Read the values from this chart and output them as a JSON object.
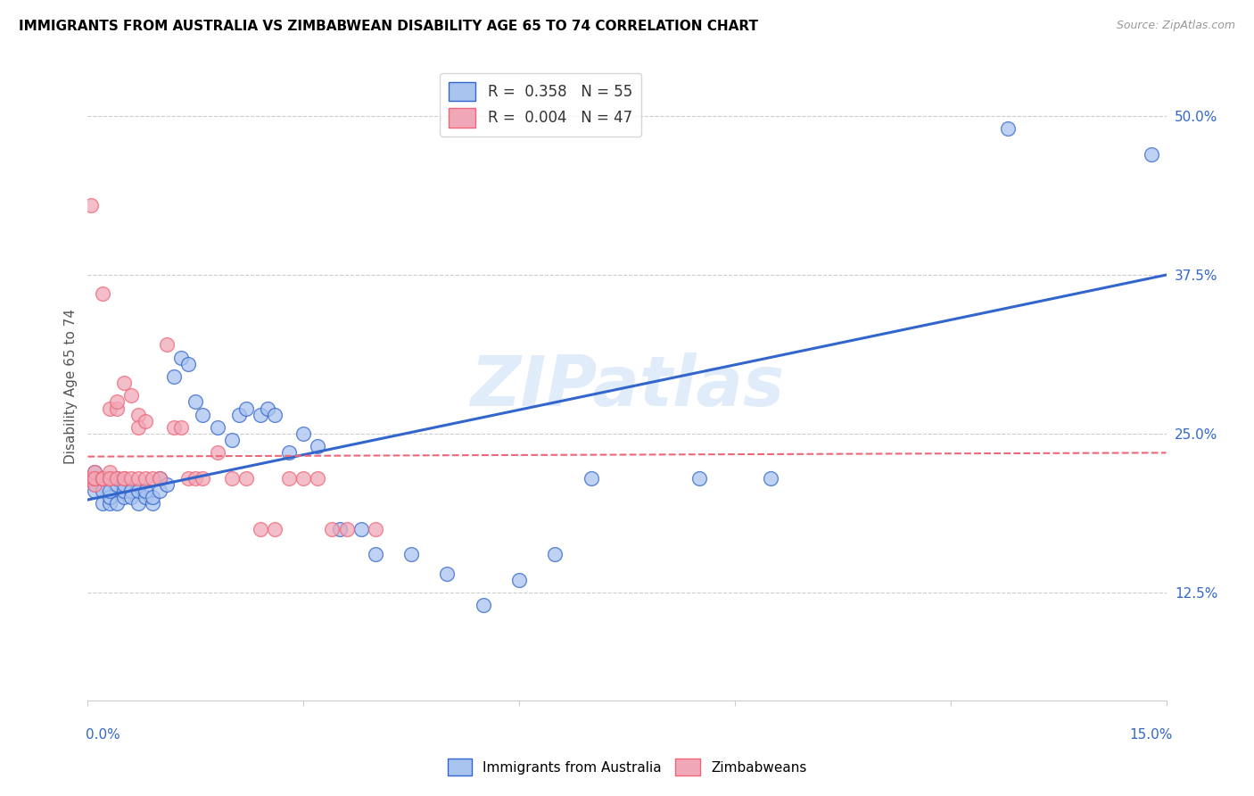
{
  "title": "IMMIGRANTS FROM AUSTRALIA VS ZIMBABWEAN DISABILITY AGE 65 TO 74 CORRELATION CHART",
  "source": "Source: ZipAtlas.com",
  "ylabel": "Disability Age 65 to 74",
  "ytick_labels": [
    "12.5%",
    "25.0%",
    "37.5%",
    "50.0%"
  ],
  "ytick_values": [
    0.125,
    0.25,
    0.375,
    0.5
  ],
  "xmin": 0.0,
  "xmax": 0.15,
  "ymin": 0.04,
  "ymax": 0.535,
  "legend_val1": "0.358",
  "legend_nval1": "55",
  "legend_val2": "0.004",
  "legend_nval2": "47",
  "watermark": "ZIPatlas",
  "color_australia": "#aac4f0",
  "color_zimbabwe": "#f0a8b8",
  "color_line_australia": "#3366cc",
  "color_line_zimbabwe": "#ee6677",
  "australia_x": [
    0.001,
    0.001,
    0.001,
    0.001,
    0.002,
    0.002,
    0.002,
    0.003,
    0.003,
    0.003,
    0.004,
    0.004,
    0.004,
    0.005,
    0.005,
    0.005,
    0.006,
    0.006,
    0.007,
    0.007,
    0.008,
    0.008,
    0.009,
    0.009,
    0.01,
    0.01,
    0.011,
    0.012,
    0.013,
    0.014,
    0.015,
    0.016,
    0.018,
    0.02,
    0.021,
    0.022,
    0.024,
    0.025,
    0.026,
    0.028,
    0.03,
    0.032,
    0.035,
    0.038,
    0.04,
    0.045,
    0.05,
    0.055,
    0.06,
    0.065,
    0.07,
    0.085,
    0.095,
    0.128,
    0.148
  ],
  "australia_y": [
    0.21,
    0.215,
    0.22,
    0.205,
    0.205,
    0.215,
    0.195,
    0.195,
    0.2,
    0.205,
    0.195,
    0.21,
    0.215,
    0.2,
    0.205,
    0.21,
    0.205,
    0.2,
    0.195,
    0.205,
    0.2,
    0.205,
    0.195,
    0.2,
    0.215,
    0.205,
    0.21,
    0.295,
    0.31,
    0.305,
    0.275,
    0.265,
    0.255,
    0.245,
    0.265,
    0.27,
    0.265,
    0.27,
    0.265,
    0.235,
    0.25,
    0.24,
    0.175,
    0.175,
    0.155,
    0.155,
    0.14,
    0.115,
    0.135,
    0.155,
    0.215,
    0.215,
    0.215,
    0.49,
    0.47
  ],
  "zimbabwe_x": [
    0.0005,
    0.0005,
    0.001,
    0.001,
    0.001,
    0.001,
    0.001,
    0.002,
    0.002,
    0.002,
    0.002,
    0.003,
    0.003,
    0.003,
    0.003,
    0.004,
    0.004,
    0.004,
    0.005,
    0.005,
    0.005,
    0.006,
    0.006,
    0.007,
    0.007,
    0.007,
    0.008,
    0.008,
    0.009,
    0.01,
    0.011,
    0.012,
    0.013,
    0.014,
    0.015,
    0.016,
    0.018,
    0.02,
    0.022,
    0.024,
    0.026,
    0.028,
    0.03,
    0.032,
    0.034,
    0.036,
    0.04
  ],
  "zimbabwe_y": [
    0.215,
    0.43,
    0.21,
    0.215,
    0.215,
    0.22,
    0.215,
    0.215,
    0.215,
    0.215,
    0.36,
    0.215,
    0.22,
    0.215,
    0.27,
    0.215,
    0.27,
    0.275,
    0.215,
    0.215,
    0.29,
    0.215,
    0.28,
    0.265,
    0.255,
    0.215,
    0.26,
    0.215,
    0.215,
    0.215,
    0.32,
    0.255,
    0.255,
    0.215,
    0.215,
    0.215,
    0.235,
    0.215,
    0.215,
    0.175,
    0.175,
    0.215,
    0.215,
    0.215,
    0.175,
    0.175,
    0.175
  ],
  "regline_aus_x0": 0.0,
  "regline_aus_x1": 0.15,
  "regline_aus_y0": 0.198,
  "regline_aus_y1": 0.375,
  "regline_zim_x0": 0.0,
  "regline_zim_x1": 0.15,
  "regline_zim_y0": 0.232,
  "regline_zim_y1": 0.235
}
